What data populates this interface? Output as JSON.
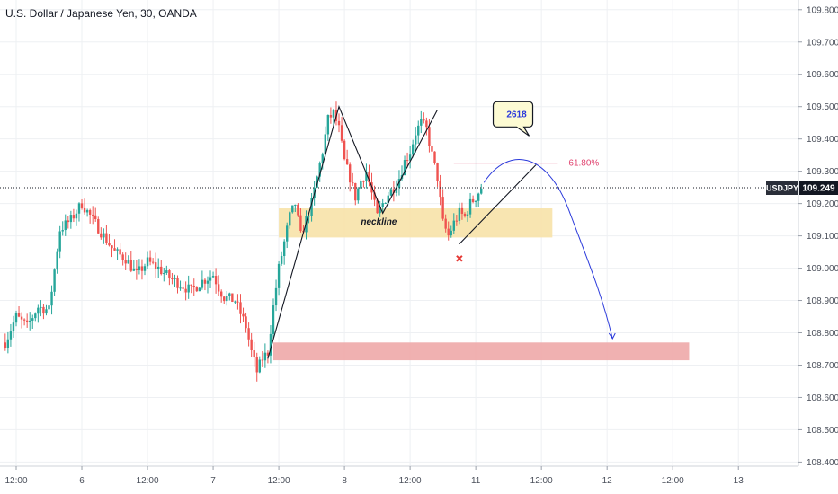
{
  "chart_data": {
    "type": "candlestick",
    "title": "U.S. Dollar / Japanese Yen, 30, OANDA",
    "symbol": "USDJPY",
    "last_price": "109.249",
    "y_axis": {
      "range": [
        108.39,
        109.83
      ],
      "ticks": [
        "108.400",
        "108.500",
        "108.600",
        "108.700",
        "108.800",
        "108.900",
        "109.000",
        "109.100",
        "109.200",
        "109.300",
        "109.400",
        "109.500",
        "109.600",
        "109.700",
        "109.800"
      ]
    },
    "x_axis": {
      "range": [
        0,
        125
      ],
      "ticks": [
        {
          "label": "12:00",
          "pos": 0
        },
        {
          "label": "6",
          "pos": 12
        },
        {
          "label": "12:00",
          "pos": 24
        },
        {
          "label": "7",
          "pos": 36
        },
        {
          "label": "12:00",
          "pos": 48
        },
        {
          "label": "8",
          "pos": 60
        },
        {
          "label": "12:00",
          "pos": 72
        },
        {
          "label": "11",
          "pos": 84
        },
        {
          "label": "12:00",
          "pos": 96
        },
        {
          "label": "12",
          "pos": 108
        },
        {
          "label": "12:00",
          "pos": 120
        },
        {
          "label": "13",
          "pos": 132
        }
      ]
    },
    "price_path": [
      [
        -2,
        108.77
      ],
      [
        0,
        108.85
      ],
      [
        2,
        108.82
      ],
      [
        4,
        108.88
      ],
      [
        6,
        108.87
      ],
      [
        8,
        109.12
      ],
      [
        10,
        109.15
      ],
      [
        12,
        109.2
      ],
      [
        14,
        109.15
      ],
      [
        16,
        109.1
      ],
      [
        18,
        109.05
      ],
      [
        20,
        109.03
      ],
      [
        22,
        108.98
      ],
      [
        24,
        109.02
      ],
      [
        26,
        109.0
      ],
      [
        28,
        108.97
      ],
      [
        30,
        108.95
      ],
      [
        32,
        108.93
      ],
      [
        34,
        108.96
      ],
      [
        36,
        108.98
      ],
      [
        37,
        108.94
      ],
      [
        38,
        108.91
      ],
      [
        40,
        108.9
      ],
      [
        41,
        108.86
      ],
      [
        42,
        108.82
      ],
      [
        43,
        108.74
      ],
      [
        44,
        108.68
      ],
      [
        45,
        108.72
      ],
      [
        46,
        108.74
      ],
      [
        47,
        108.88
      ],
      [
        48,
        109.0
      ],
      [
        49,
        109.08
      ],
      [
        50,
        109.16
      ],
      [
        51,
        109.2
      ],
      [
        52,
        109.1
      ],
      [
        53,
        109.15
      ],
      [
        54,
        109.2
      ],
      [
        55,
        109.28
      ],
      [
        56,
        109.36
      ],
      [
        57,
        109.46
      ],
      [
        58,
        109.48
      ],
      [
        59,
        109.43
      ],
      [
        60,
        109.33
      ],
      [
        61,
        109.28
      ],
      [
        62,
        109.22
      ],
      [
        63,
        109.27
      ],
      [
        64,
        109.3
      ],
      [
        65,
        109.23
      ],
      [
        66,
        109.16
      ],
      [
        67,
        109.2
      ],
      [
        68,
        109.23
      ],
      [
        69,
        109.25
      ],
      [
        70,
        109.28
      ],
      [
        71,
        109.33
      ],
      [
        72,
        109.36
      ],
      [
        73,
        109.42
      ],
      [
        74,
        109.45
      ],
      [
        75,
        109.43
      ],
      [
        76,
        109.35
      ],
      [
        77,
        109.28
      ],
      [
        78,
        109.14
      ],
      [
        79,
        109.1
      ],
      [
        80,
        109.14
      ],
      [
        81,
        109.17
      ],
      [
        82,
        109.16
      ],
      [
        83,
        109.2
      ],
      [
        84,
        109.22
      ],
      [
        85,
        109.25
      ]
    ],
    "horizontal_line": {
      "label": "USDJPY",
      "value": 109.249
    },
    "annotations": {
      "neckline_label": "neckline",
      "fib_label": "61.80%",
      "bubble_text": "2618",
      "zones": [
        {
          "name": "neckline-zone",
          "x0": 48,
          "x1": 98,
          "y0": 109.095,
          "y1": 109.185,
          "color": "#f7e2a8"
        },
        {
          "name": "target-zone",
          "x0": 47,
          "x1": 123,
          "y0": 108.715,
          "y1": 108.77,
          "color": "#eea9a9"
        }
      ],
      "fib_line": {
        "x0": 80,
        "x1": 99,
        "y": 109.325,
        "color": "#e0436f"
      },
      "pattern_lines": [
        [
          [
            46,
            108.72
          ],
          [
            59,
            109.5
          ],
          [
            67,
            109.17
          ],
          [
            77,
            109.49
          ]
        ],
        [
          [
            81,
            109.075
          ],
          [
            95,
            109.32
          ]
        ]
      ],
      "invalidation_marker": {
        "x": 81,
        "y": 109.03
      },
      "projection_color": "#2b3adb"
    },
    "colors": {
      "up": "#26a69a",
      "down": "#ef5350",
      "price_line": "#131722",
      "grid": "#eef0f3"
    }
  }
}
